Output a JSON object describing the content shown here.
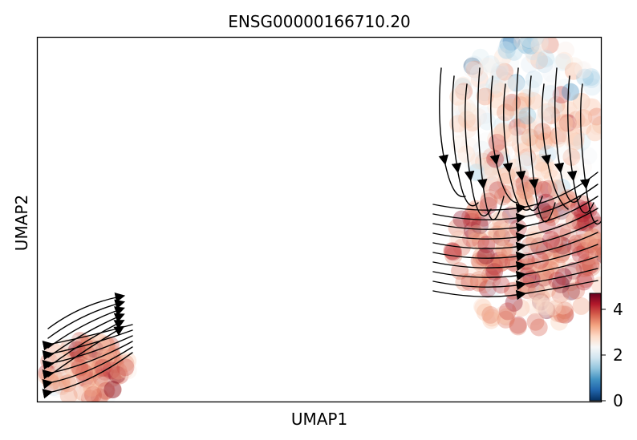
{
  "chart_data": {
    "type": "scatter",
    "title": "ENSG00000166710.20",
    "xlabel": "UMAP1",
    "ylabel": "UMAP2",
    "grid": false,
    "point_alpha": 0.35,
    "colormap": {
      "name": "RdBu_r",
      "colors": [
        "#053061",
        "#2166ac",
        "#4393c3",
        "#92c5de",
        "#d1e5f0",
        "#f7f7f7",
        "#fddbc7",
        "#f4a582",
        "#d6604d",
        "#b2182b",
        "#67001f"
      ],
      "vmin": 0,
      "vmax": 4.7
    },
    "colorbar": {
      "ticks": [
        0,
        2,
        4
      ],
      "tick_labels": [
        "0",
        "2",
        "4"
      ],
      "placement": "bottom-right"
    },
    "clusters": [
      {
        "cluster": "lower-left",
        "cx": 0.09,
        "cy": 0.09,
        "rx": 0.08,
        "ry": 0.08,
        "mean_expression": 3.3
      },
      {
        "cluster": "upper-right",
        "cx": 0.87,
        "cy": 0.78,
        "rx": 0.13,
        "ry": 0.22,
        "mean_expression": 2.8
      },
      {
        "cluster": "right-middle",
        "cx": 0.87,
        "cy": 0.4,
        "rx": 0.14,
        "ry": 0.2,
        "mean_expression": 3.6
      }
    ],
    "velocity_stream": "streamlines overlaid on both clusters"
  }
}
